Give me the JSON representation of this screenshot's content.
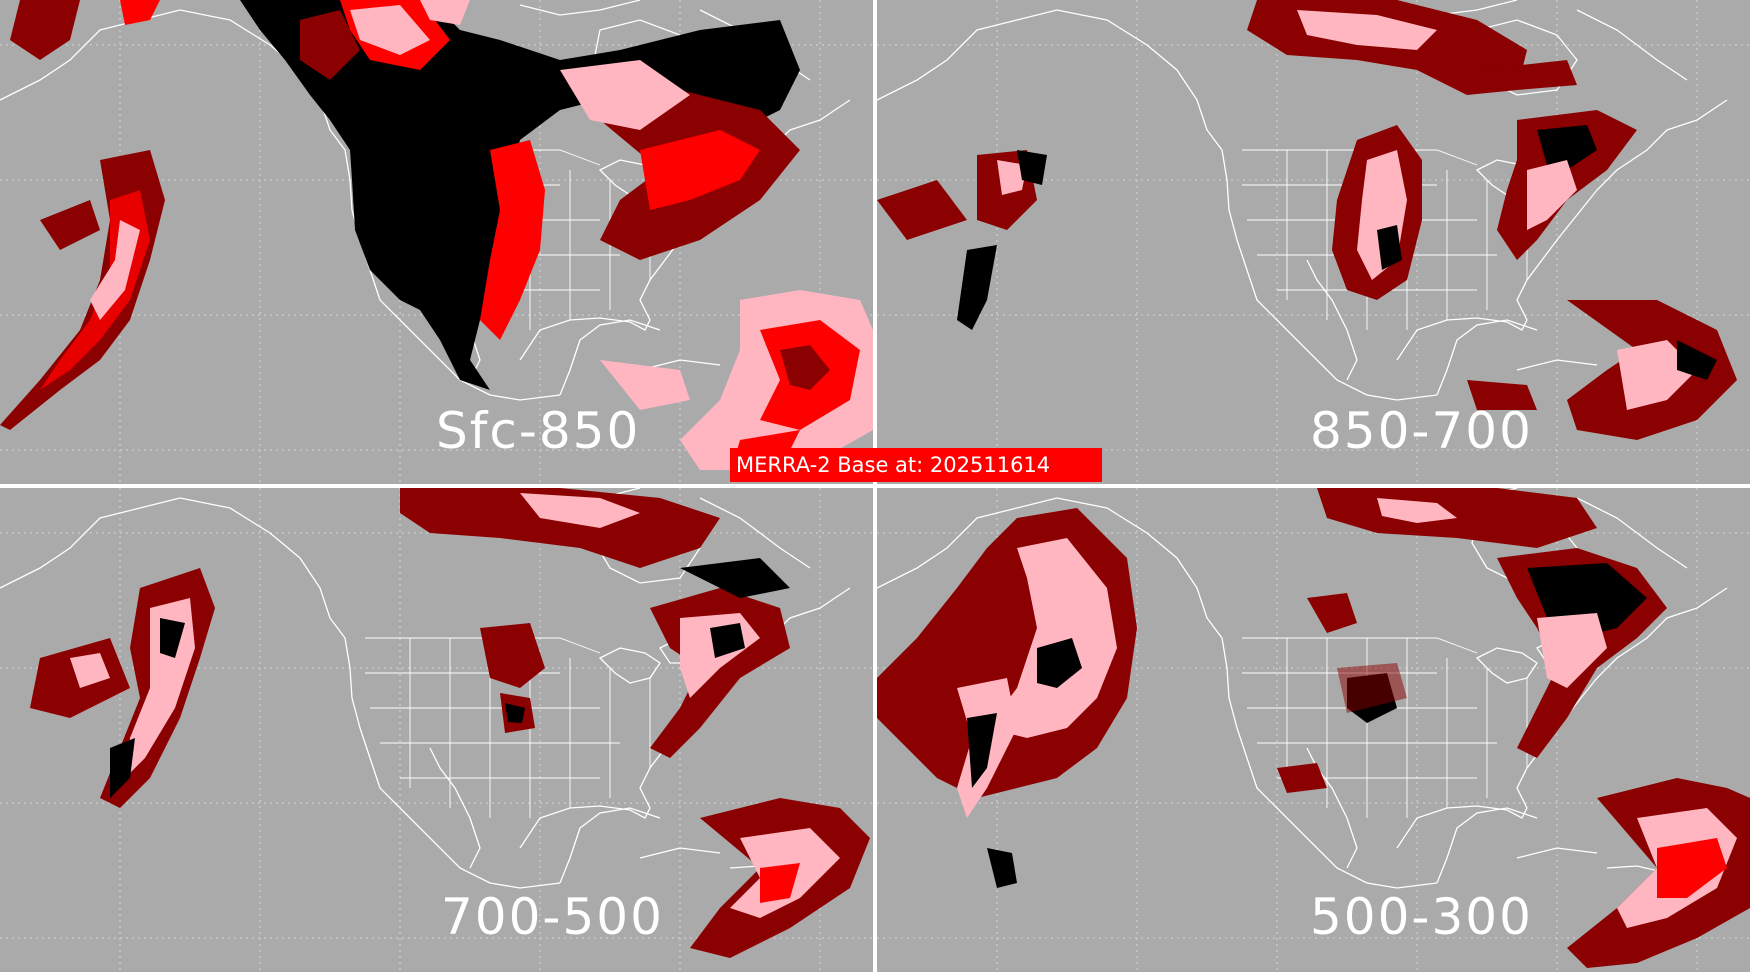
{
  "banner": {
    "text": "MERRA-2 Base at: 202511614"
  },
  "panels": [
    {
      "label": "Sfc-850"
    },
    {
      "label": "850-700"
    },
    {
      "label": "700-500"
    },
    {
      "label": "500-300"
    }
  ],
  "colors": {
    "background": "#aaaaaa",
    "divider": "#ffffff",
    "coastline": "#ffffff",
    "gridline": "#d8d8d8",
    "dark_red": "#8b0000",
    "red": "#ff0000",
    "pink": "#ffb6c1",
    "black": "#000000",
    "banner": "#ff0000"
  }
}
